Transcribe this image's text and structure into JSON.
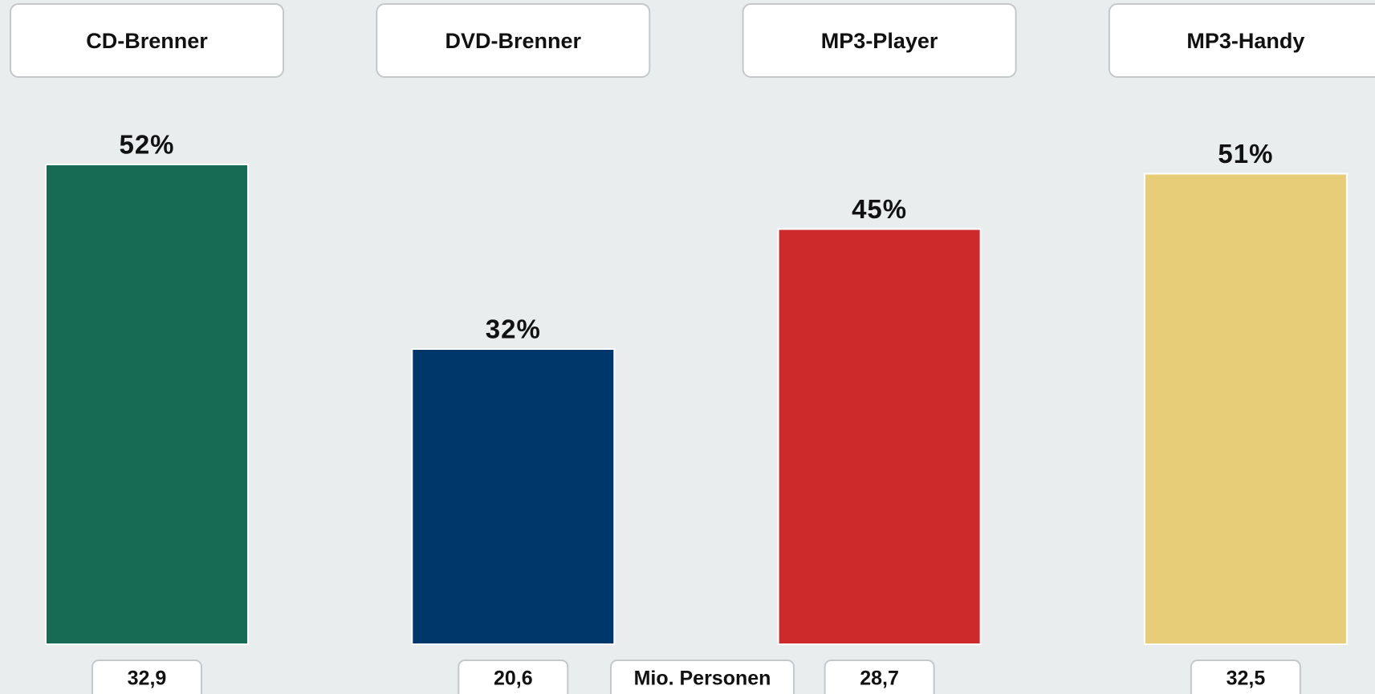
{
  "chart_data": {
    "type": "bar",
    "categories": [
      "CD-Brenner",
      "DVD-Brenner",
      "MP3-Player",
      "MP3-Handy"
    ],
    "values": [
      52,
      32,
      45,
      51
    ],
    "value_labels": [
      "52%",
      "32%",
      "45%",
      "51%"
    ],
    "colors": [
      "#176b54",
      "#00376b",
      "#cc2a2b",
      "#e8cd79"
    ],
    "persons": {
      "label": "Mio. Personen",
      "values": [
        32.9,
        20.6,
        28.7,
        32.5
      ],
      "value_labels": [
        "32,9",
        "20,6",
        "28,7",
        "32,5"
      ]
    }
  }
}
